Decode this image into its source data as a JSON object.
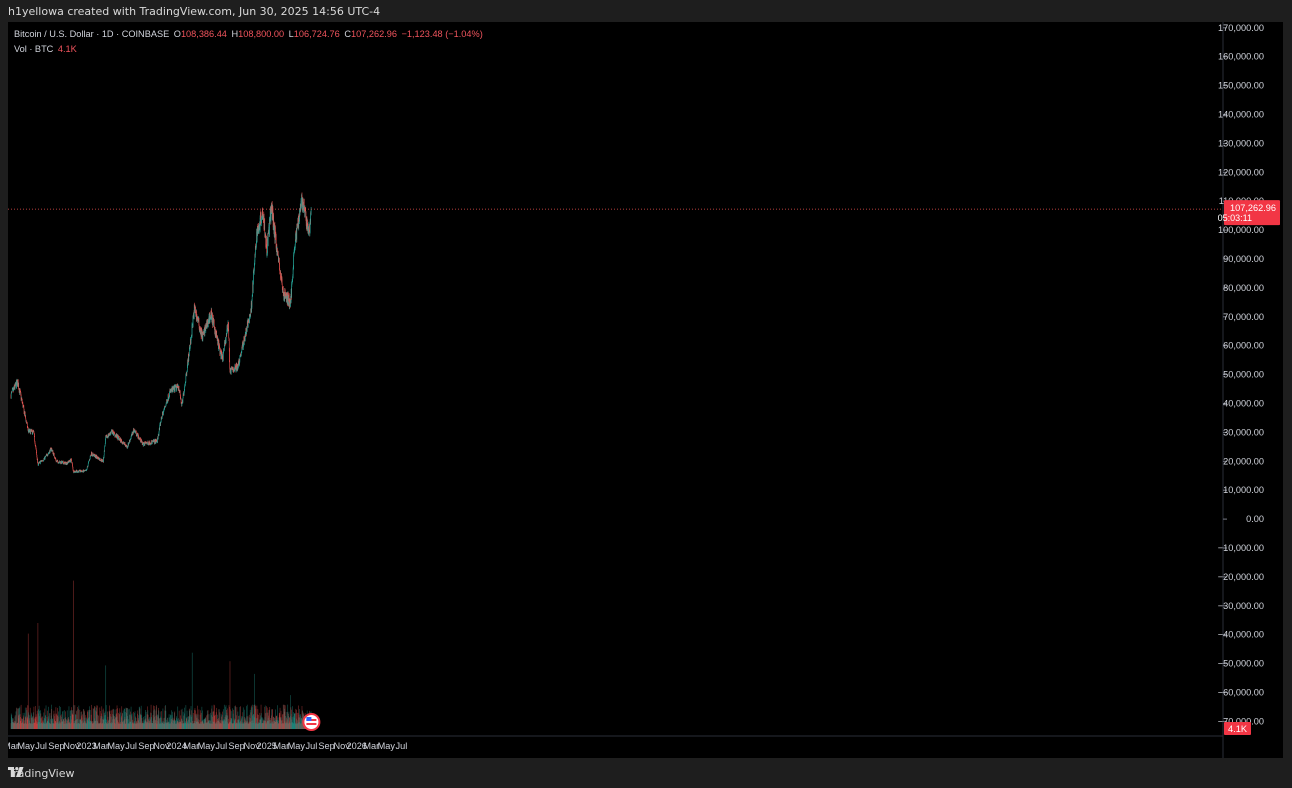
{
  "header": {
    "creator_text": "h1yellowa created with TradingView.com, Jun 30, 2025 14:56 UTC-4"
  },
  "legend": {
    "symbol": "Bitcoin / U.S. Dollar · 1D · COINBASE",
    "o_label": "O",
    "o_value": "108,386.44",
    "h_label": "H",
    "h_value": "108,800.00",
    "l_label": "L",
    "l_value": "106,724.76",
    "c_label": "C",
    "c_value": "107,262.96",
    "change": "−1,123.48 (−1.04%)",
    "vol_label": "Vol · BTC",
    "vol_value": "4.1K"
  },
  "price_tag": {
    "price": "107,262.96",
    "countdown": "05:03:11"
  },
  "vol_tag": "4.1K",
  "footer": {
    "brand": "TradingView"
  },
  "colors": {
    "up": "#26a69a",
    "down": "#ef5350",
    "tag": "#f23645",
    "background": "#000000",
    "axis_text": "#d1d4dc"
  },
  "icons": {
    "brand": "tradingview-logo-icon",
    "flag": "us-flag-icon"
  },
  "chart_data": {
    "type": "candlestick",
    "symbol": "BTC/USD",
    "timeframe": "1D",
    "exchange": "COINBASE",
    "y_ticks": [
      "170,000.00",
      "160,000.00",
      "150,000.00",
      "140,000.00",
      "130,000.00",
      "120,000.00",
      "110,000.00",
      "100,000.00",
      "90,000.00",
      "80,000.00",
      "70,000.00",
      "60,000.00",
      "50,000.00",
      "40,000.00",
      "30,000.00",
      "20,000.00",
      "10,000.00",
      "0.00",
      "−10,000.00",
      "−20,000.00",
      "−30,000.00",
      "−40,000.00",
      "−50,000.00",
      "−60,000.00",
      "−70,000.00"
    ],
    "y_tick_values": [
      170000,
      160000,
      150000,
      140000,
      130000,
      120000,
      110000,
      100000,
      90000,
      80000,
      70000,
      60000,
      50000,
      40000,
      30000,
      20000,
      10000,
      0,
      -10000,
      -20000,
      -30000,
      -40000,
      -50000,
      -60000,
      -70000
    ],
    "ylim": [
      -74000,
      172000
    ],
    "x_ticks": [
      "Mar",
      "May",
      "Jul",
      "Sep",
      "Nov",
      "2023",
      "Mar",
      "May",
      "Jul",
      "Sep",
      "Nov",
      "2024",
      "Mar",
      "May",
      "Jul",
      "Sep",
      "Nov",
      "2025",
      "Mar",
      "May",
      "Jul",
      "Sep",
      "Nov",
      "2026",
      "Mar",
      "May",
      "Jul"
    ],
    "x_tick_dates": [
      "2022-03-01",
      "2022-05-01",
      "2022-07-01",
      "2022-09-01",
      "2022-11-01",
      "2023-01-01",
      "2023-03-01",
      "2023-05-01",
      "2023-07-01",
      "2023-09-01",
      "2023-11-01",
      "2024-01-01",
      "2024-03-01",
      "2024-05-01",
      "2024-07-01",
      "2024-09-01",
      "2024-11-01",
      "2025-01-01",
      "2025-03-01",
      "2025-05-01",
      "2025-07-01",
      "2025-09-01",
      "2025-11-01",
      "2026-01-01",
      "2026-03-01",
      "2026-05-01",
      "2026-07-01"
    ],
    "last_price": 107262.96,
    "price_points": [
      {
        "date": "2022-03-01",
        "close": 43000
      },
      {
        "date": "2022-03-28",
        "close": 47500
      },
      {
        "date": "2022-04-15",
        "close": 40500
      },
      {
        "date": "2022-05-10",
        "close": 30500
      },
      {
        "date": "2022-06-01",
        "close": 30000
      },
      {
        "date": "2022-06-18",
        "close": 19000
      },
      {
        "date": "2022-07-15",
        "close": 21000
      },
      {
        "date": "2022-08-12",
        "close": 24400
      },
      {
        "date": "2022-09-01",
        "close": 20000
      },
      {
        "date": "2022-10-10",
        "close": 19300
      },
      {
        "date": "2022-11-01",
        "close": 20500
      },
      {
        "date": "2022-11-09",
        "close": 16500
      },
      {
        "date": "2022-12-31",
        "close": 16600
      },
      {
        "date": "2023-01-20",
        "close": 22700
      },
      {
        "date": "2023-03-10",
        "close": 20000
      },
      {
        "date": "2023-03-20",
        "close": 28000
      },
      {
        "date": "2023-04-14",
        "close": 30300
      },
      {
        "date": "2023-06-15",
        "close": 25000
      },
      {
        "date": "2023-07-13",
        "close": 31000
      },
      {
        "date": "2023-08-17",
        "close": 26000
      },
      {
        "date": "2023-10-15",
        "close": 27000
      },
      {
        "date": "2023-11-01",
        "close": 35000
      },
      {
        "date": "2023-12-05",
        "close": 44000
      },
      {
        "date": "2024-01-10",
        "close": 46000
      },
      {
        "date": "2024-01-23",
        "close": 39000
      },
      {
        "date": "2024-02-28",
        "close": 62000
      },
      {
        "date": "2024-03-14",
        "close": 73000
      },
      {
        "date": "2024-04-15",
        "close": 63000
      },
      {
        "date": "2024-05-20",
        "close": 71000
      },
      {
        "date": "2024-07-05",
        "close": 55000
      },
      {
        "date": "2024-07-29",
        "close": 68000
      },
      {
        "date": "2024-08-05",
        "close": 51000
      },
      {
        "date": "2024-09-06",
        "close": 53000
      },
      {
        "date": "2024-10-29",
        "close": 72000
      },
      {
        "date": "2024-11-22",
        "close": 99000
      },
      {
        "date": "2024-12-17",
        "close": 107000
      },
      {
        "date": "2025-01-01",
        "close": 93000
      },
      {
        "date": "2025-01-20",
        "close": 108000
      },
      {
        "date": "2025-02-25",
        "close": 85000
      },
      {
        "date": "2025-03-10",
        "close": 78000
      },
      {
        "date": "2025-04-08",
        "close": 75000
      },
      {
        "date": "2025-04-22",
        "close": 93000
      },
      {
        "date": "2025-05-22",
        "close": 111000
      },
      {
        "date": "2025-06-22",
        "close": 99000
      },
      {
        "date": "2025-06-30",
        "close": 107262.96
      }
    ],
    "volume_label": "Vol · BTC",
    "volume_last": "4.1K",
    "volume_peaks_btc": [
      {
        "date": "2022-05-10",
        "value": 45000
      },
      {
        "date": "2022-06-18",
        "value": 50000
      },
      {
        "date": "2022-11-09",
        "value": 70000
      },
      {
        "date": "2023-03-20",
        "value": 30000
      },
      {
        "date": "2024-03-05",
        "value": 36000
      },
      {
        "date": "2024-08-05",
        "value": 32000
      },
      {
        "date": "2024-11-12",
        "value": 26000
      },
      {
        "date": "2025-04-07",
        "value": 16000
      }
    ]
  }
}
